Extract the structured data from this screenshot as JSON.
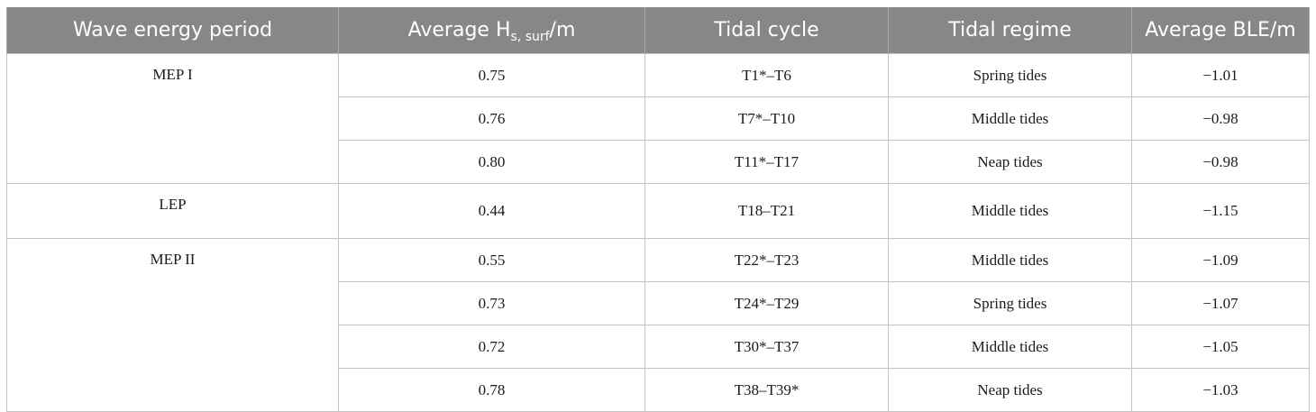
{
  "table": {
    "headers": {
      "period": "Wave energy period",
      "hs_main": "Average H",
      "hs_sub": "s, surf",
      "hs_unit": "/m",
      "cycle": "Tidal cycle",
      "regime": "Tidal regime",
      "ble": "Average BLE/m"
    },
    "groups": [
      {
        "period": "MEP I",
        "rows": [
          {
            "hs": "0.75",
            "cycle": "T1*–T6",
            "regime": "Spring tides",
            "ble": "−1.01"
          },
          {
            "hs": "0.76",
            "cycle": "T7*–T10",
            "regime": "Middle tides",
            "ble": "−0.98"
          },
          {
            "hs": "0.80",
            "cycle": "T11*–T17",
            "regime": "Neap tides",
            "ble": "−0.98"
          }
        ]
      },
      {
        "period": "LEP",
        "rows": [
          {
            "hs": "0.44",
            "cycle": "T18–T21",
            "regime": "Middle tides",
            "ble": "−1.15"
          }
        ]
      },
      {
        "period": "MEP II",
        "rows": [
          {
            "hs": "0.55",
            "cycle": "T22*–T23",
            "regime": "Middle tides",
            "ble": "−1.09"
          },
          {
            "hs": "0.73",
            "cycle": "T24*–T29",
            "regime": "Spring tides",
            "ble": "−1.07"
          },
          {
            "hs": "0.72",
            "cycle": "T30*–T37",
            "regime": "Middle tides",
            "ble": "−1.05"
          },
          {
            "hs": "0.78",
            "cycle": "T38–T39*",
            "regime": "Neap tides",
            "ble": "−1.03"
          }
        ]
      }
    ]
  }
}
